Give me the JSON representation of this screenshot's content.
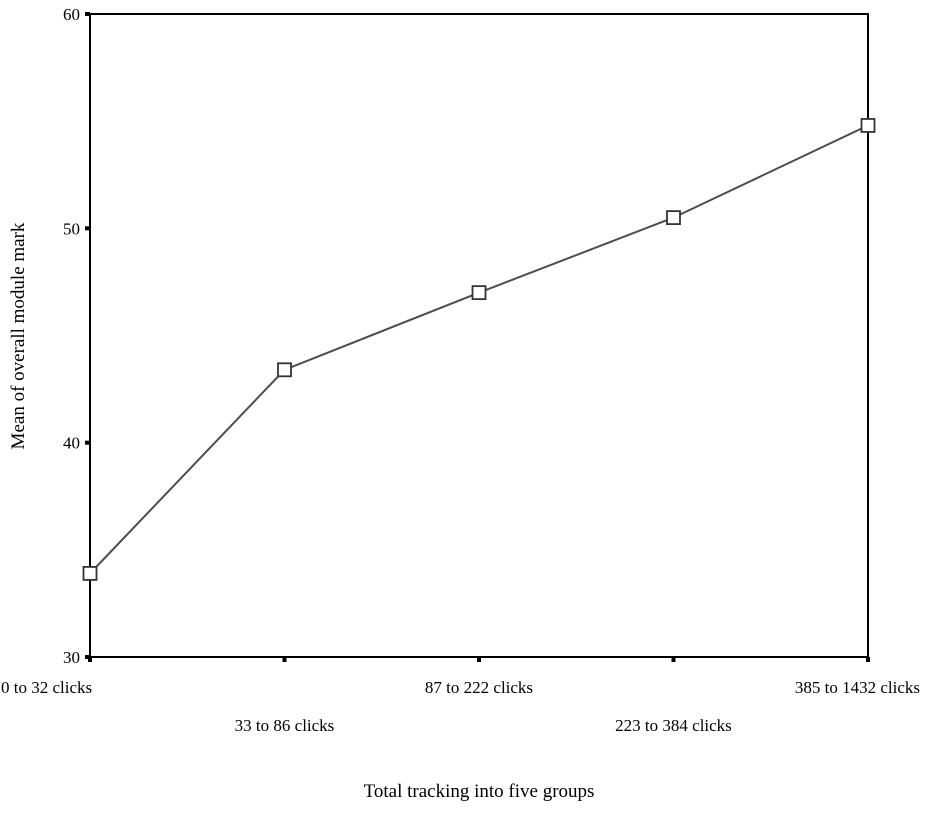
{
  "chart_data": {
    "type": "line",
    "xlabel": "Total tracking into five groups",
    "ylabel": "Mean of overall module mark",
    "categories": [
      "0 to 32 clicks",
      "33 to 86 clicks",
      "87 to 222 clicks",
      "223 to 384 clicks",
      "385 to 1432 clicks"
    ],
    "series": [
      {
        "values": [
          33.9,
          43.4,
          47.0,
          50.5,
          54.8
        ],
        "marker": "open-square",
        "color": "#4d4d4d"
      }
    ],
    "ylim": [
      30,
      60
    ],
    "yticks": [
      30,
      40,
      50,
      60
    ],
    "grid": false,
    "legend": false
  }
}
